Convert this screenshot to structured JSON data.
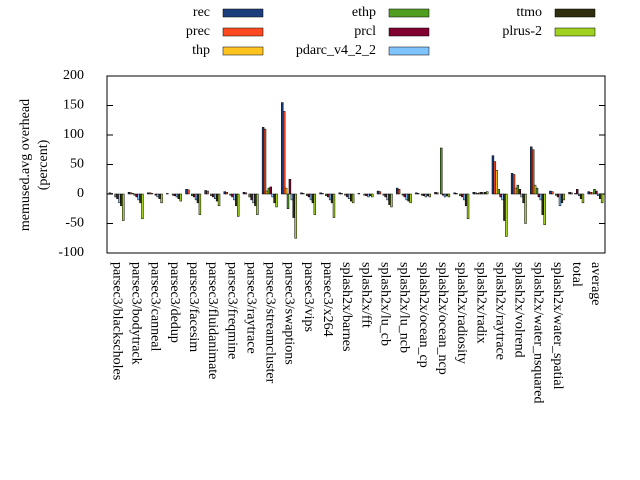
{
  "chart_data": {
    "type": "bar",
    "ylabel": [
      "memused.avg overhead",
      "(percent)"
    ],
    "ylim": [
      -100,
      200
    ],
    "yticks": [
      -100,
      -50,
      0,
      50,
      100,
      150,
      200
    ],
    "categories": [
      "parsec3/blackscholes",
      "parsec3/bodytrack",
      "parsec3/canneal",
      "parsec3/dedup",
      "parsec3/facesim",
      "parsec3/fluidanimate",
      "parsec3/freqmine",
      "parsec3/raytrace",
      "parsec3/streamcluster",
      "parsec3/swaptions",
      "parsec3/vips",
      "parsec3/x264",
      "splash2x/barnes",
      "splash2x/fft",
      "splash2x/lu_cb",
      "splash2x/lu_ncb",
      "splash2x/ocean_cp",
      "splash2x/ocean_ncp",
      "splash2x/radiosity",
      "splash2x/radix",
      "splash2x/raytrace",
      "splash2x/volrend",
      "splash2x/water_nsquared",
      "splash2x/water_spatial",
      "total",
      "average"
    ],
    "series": [
      {
        "name": "rec",
        "color": "#1b3d7c",
        "values": [
          2,
          3,
          2,
          1,
          8,
          6,
          4,
          3,
          113,
          155,
          2,
          2,
          2,
          1,
          5,
          10,
          2,
          3,
          2,
          3,
          65,
          35,
          80,
          5,
          3,
          4
        ]
      },
      {
        "name": "prec",
        "color": "#ff4a1f",
        "values": [
          1,
          2,
          2,
          0,
          7,
          5,
          3,
          2,
          110,
          140,
          1,
          1,
          1,
          0,
          4,
          8,
          1,
          2,
          1,
          2,
          55,
          33,
          75,
          4,
          2,
          3
        ]
      },
      {
        "name": "thp",
        "color": "#ffc31f",
        "values": [
          0,
          1,
          1,
          0,
          0,
          0,
          0,
          0,
          5,
          10,
          0,
          0,
          0,
          0,
          0,
          0,
          0,
          0,
          0,
          1,
          40,
          10,
          15,
          0,
          0,
          2
        ]
      },
      {
        "name": "ethp",
        "color": "#4f9e1f",
        "values": [
          -5,
          -2,
          0,
          -2,
          -3,
          -3,
          -2,
          -5,
          10,
          -25,
          -3,
          -3,
          -2,
          -2,
          -2,
          -2,
          -2,
          78,
          -3,
          2,
          8,
          15,
          10,
          -2,
          1,
          8
        ]
      },
      {
        "name": "prcl",
        "color": "#7f0030",
        "values": [
          -8,
          -5,
          -2,
          -3,
          -5,
          -5,
          -5,
          -10,
          12,
          25,
          -5,
          -5,
          -5,
          -3,
          -5,
          -5,
          -3,
          -2,
          -5,
          3,
          -5,
          8,
          -5,
          -5,
          8,
          5
        ]
      },
      {
        "name": "pdarc_v4_2_2",
        "color": "#7fc3ff",
        "values": [
          -15,
          -10,
          -5,
          -5,
          -10,
          -8,
          -10,
          -15,
          -5,
          -10,
          -10,
          -10,
          -8,
          -5,
          -10,
          -10,
          -5,
          -5,
          -10,
          2,
          -10,
          -5,
          -10,
          -20,
          -3,
          -3
        ]
      },
      {
        "name": "ttmo",
        "color": "#2f2f0f",
        "values": [
          -20,
          -15,
          -8,
          -8,
          -15,
          -12,
          -20,
          -20,
          -15,
          -40,
          -15,
          -15,
          -12,
          -3,
          -18,
          -12,
          -3,
          -3,
          -20,
          3,
          -45,
          -15,
          -35,
          -15,
          -8,
          -8
        ]
      },
      {
        "name": "plrus-2",
        "color": "#a0d01f",
        "values": [
          -45,
          -42,
          -15,
          -12,
          -35,
          -20,
          -38,
          -35,
          -22,
          -75,
          -35,
          -40,
          -15,
          -5,
          -22,
          -15,
          -5,
          -5,
          -42,
          4,
          -72,
          -50,
          -52,
          -10,
          -15,
          -15
        ]
      }
    ]
  }
}
